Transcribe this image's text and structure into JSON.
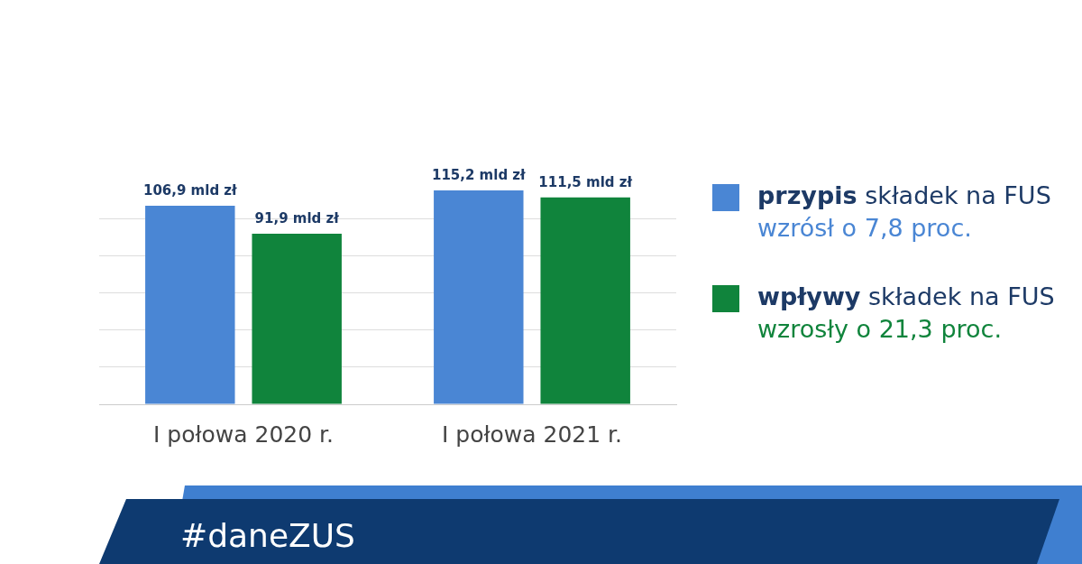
{
  "chart_data": {
    "type": "bar",
    "categories": [
      "I połowa 2020 r.",
      "I połowa 2021 r."
    ],
    "series": [
      {
        "name": "przypis składek na FUS",
        "color": "#4a86d4",
        "values": [
          106.9,
          115.2
        ],
        "value_labels": [
          "106,9 mld zł",
          "115,2 mld zł"
        ]
      },
      {
        "name": "wpływy składek na FUS",
        "color": "#10843c",
        "values": [
          91.9,
          111.5
        ],
        "value_labels": [
          "91,9 mld zł",
          "111,5 mld zł"
        ]
      }
    ],
    "yticks": [
      0,
      20,
      40,
      60,
      80,
      100
    ],
    "tick_labels": "x",
    "grid": "y",
    "legend": "right",
    "annotations": [
      "wzrósł o 7,8 proc.",
      "wzrosły o 21,3 proc.",
      "#daneZUS"
    ]
  }
}
